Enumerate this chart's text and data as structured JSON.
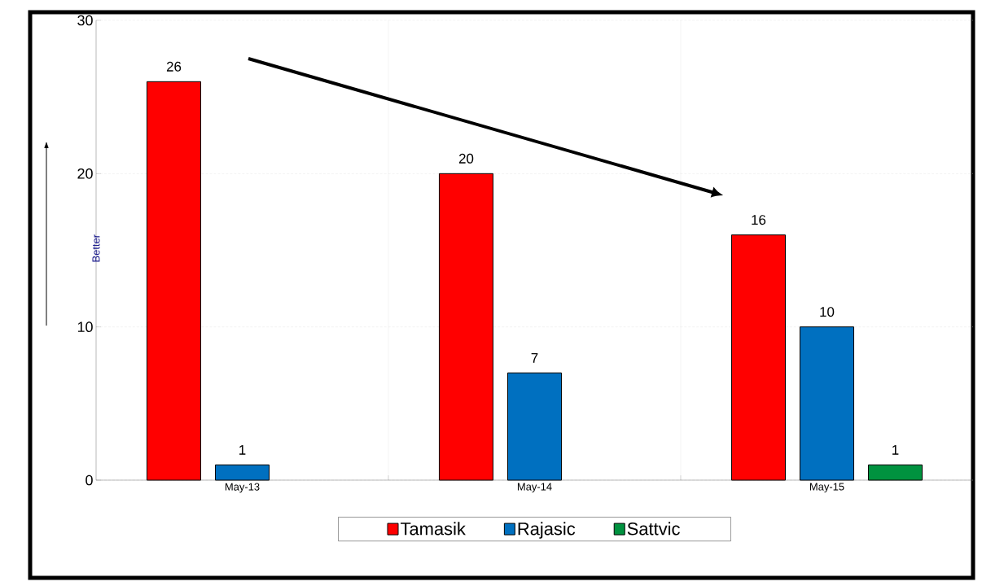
{
  "chart_data": {
    "type": "bar",
    "ylabel": "Better",
    "categories": [
      "May-13",
      "May-14",
      "May-15"
    ],
    "series": [
      {
        "name": "Tamasik",
        "color": "#ff0000",
        "values": [
          26,
          20,
          16
        ]
      },
      {
        "name": "Rajasic",
        "color": "#0070c0",
        "values": [
          1,
          7,
          10
        ]
      },
      {
        "name": "Sattvic",
        "color": "#00923f",
        "values": [
          null,
          null,
          1
        ]
      }
    ],
    "ylim": [
      0,
      30
    ],
    "yticks": [
      0,
      10,
      20,
      30
    ],
    "grid": true,
    "legend": "bottom",
    "data_labels": true
  }
}
